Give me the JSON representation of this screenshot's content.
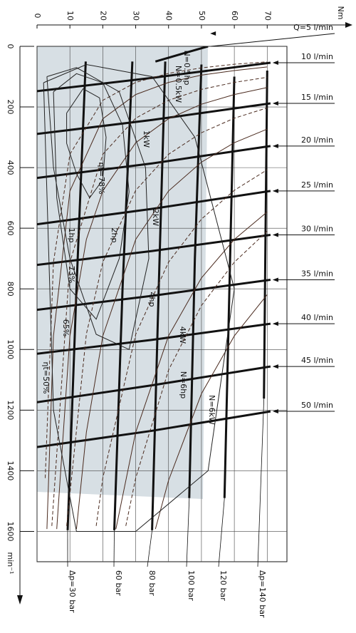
{
  "chart_data": {
    "type": "line",
    "x_label": "Nm",
    "y_label": "min⁻¹",
    "xlim": [
      0,
      76
    ],
    "ylim": [
      0,
      1700
    ],
    "y_inverted": true,
    "grid": true,
    "xticks": [
      0,
      10,
      20,
      30,
      40,
      50,
      60,
      70
    ],
    "yticks": [
      0,
      200,
      400,
      600,
      800,
      1000,
      1200,
      1400,
      1600
    ],
    "series": [
      {
        "name": "Q=5 l/min",
        "color": "#111",
        "style": "bold",
        "x": [
          36,
          44,
          52
        ],
        "values": [
          50,
          25,
          0
        ]
      },
      {
        "name": "10 l/min",
        "color": "#111",
        "style": "bold",
        "x": [
          0,
          35,
          71
        ],
        "values": [
          148,
          104,
          54
        ]
      },
      {
        "name": "15 l/min",
        "color": "#111",
        "style": "bold",
        "x": [
          0,
          35,
          71
        ],
        "values": [
          289,
          243,
          188
        ]
      },
      {
        "name": "20 l/min",
        "color": "#111",
        "style": "bold",
        "x": [
          0,
          35,
          71
        ],
        "values": [
          434,
          386,
          329
        ]
      },
      {
        "name": "25 l/min",
        "color": "#111",
        "style": "bold",
        "x": [
          0,
          35,
          71
        ],
        "values": [
          587,
          536,
          477
        ]
      },
      {
        "name": "30 l/min",
        "color": "#111",
        "style": "bold",
        "x": [
          0,
          35,
          71
        ],
        "values": [
          721,
          675,
          622
        ]
      },
      {
        "name": "35 l/min",
        "color": "#111",
        "style": "bold",
        "x": [
          0,
          35,
          71
        ],
        "values": [
          869,
          823,
          770
        ]
      },
      {
        "name": "40 l/min",
        "color": "#111",
        "style": "bold",
        "x": [
          0,
          35,
          71
        ],
        "values": [
          1014,
          968,
          915
        ]
      },
      {
        "name": "45 l/min",
        "color": "#111",
        "style": "bold",
        "x": [
          0,
          35,
          71
        ],
        "values": [
          1174,
          1118,
          1056
        ]
      },
      {
        "name": "50 l/min",
        "color": "#111",
        "style": "bold",
        "x": [
          0,
          35,
          71
        ],
        "values": [
          1322,
          1268,
          1204
        ]
      },
      {
        "name": "Δp=30 bar",
        "color": "#111",
        "style": "bold",
        "x": [
          14.8,
          12,
          9.3
        ],
        "values": [
          50,
          800,
          1596
        ]
      },
      {
        "name": "60 bar",
        "color": "#111",
        "style": "bold",
        "x": [
          29,
          26,
          23.5
        ],
        "values": [
          50,
          800,
          1596
        ]
      },
      {
        "name": "80 bar",
        "color": "#111",
        "style": "bold",
        "x": [
          39,
          37,
          35
        ],
        "values": [
          50,
          800,
          1596
        ]
      },
      {
        "name": "100 bar",
        "color": "#111",
        "style": "bold",
        "x": [
          50,
          48,
          46.3
        ],
        "values": [
          60,
          700,
          1490
        ]
      },
      {
        "name": "120 bar",
        "color": "#111",
        "style": "bold",
        "x": [
          60,
          58.5,
          57
        ],
        "values": [
          100,
          800,
          1490
        ]
      },
      {
        "name": "Δp=140 bar",
        "color": "#111",
        "style": "bold",
        "x": [
          70,
          69.5,
          69
        ],
        "values": [
          80,
          600,
          1162
        ]
      },
      {
        "name": "N=0.5kW",
        "color": "#4a2a1e",
        "style": "thin",
        "x": [
          3,
          5,
          10,
          20,
          30,
          40,
          50,
          60,
          70
        ],
        "values": [
          1592,
          955,
          477,
          239,
          159,
          119,
          95,
          80,
          68
        ]
      },
      {
        "name": "1kW",
        "color": "#4a2a1e",
        "style": "thin",
        "x": [
          6,
          10,
          15,
          20,
          30,
          40,
          50,
          60,
          70
        ],
        "values": [
          1592,
          955,
          637,
          477,
          318,
          239,
          191,
          159,
          136
        ]
      },
      {
        "name": "2kW",
        "color": "#4a2a1e",
        "style": "thin",
        "x": [
          12,
          15,
          20,
          30,
          40,
          50,
          60,
          70
        ],
        "values": [
          1592,
          1273,
          955,
          637,
          477,
          382,
          318,
          273
        ]
      },
      {
        "name": "4kW",
        "color": "#4a2a1e",
        "style": "thin",
        "x": [
          24,
          30,
          40,
          50,
          60,
          70
        ],
        "values": [
          1592,
          1273,
          955,
          764,
          637,
          546
        ]
      },
      {
        "name": "N=6kW",
        "color": "#4a2a1e",
        "style": "thin",
        "x": [
          36,
          40,
          50,
          60,
          70
        ],
        "values": [
          1592,
          1432,
          1146,
          955,
          819
        ]
      },
      {
        "name": "N=0.5hp",
        "color": "#4a2a1e",
        "style": "dashed",
        "x": [
          2.5,
          5,
          10,
          20,
          30,
          40,
          50,
          60,
          70
        ],
        "values": [
          1424,
          712,
          356,
          178,
          119,
          89,
          71,
          59,
          51
        ]
      },
      {
        "name": "1hp",
        "color": "#4a2a1e",
        "style": "dashed",
        "x": [
          4.5,
          10,
          20,
          30,
          40,
          50,
          60,
          70
        ],
        "values": [
          1582,
          712,
          356,
          237,
          178,
          142,
          119,
          102
        ]
      },
      {
        "name": "2hp",
        "color": "#4a2a1e",
        "style": "dashed",
        "x": [
          9,
          15,
          20,
          30,
          40,
          50,
          60,
          70
        ],
        "values": [
          1582,
          949,
          712,
          475,
          356,
          285,
          237,
          203
        ]
      },
      {
        "name": "4hp",
        "color": "#4a2a1e",
        "style": "dashed",
        "x": [
          18,
          20,
          30,
          40,
          50,
          60,
          70
        ],
        "values": [
          1582,
          1424,
          950,
          712,
          570,
          475,
          407
        ]
      },
      {
        "name": "N=6hp",
        "color": "#4a2a1e",
        "style": "dashed",
        "x": [
          27,
          30,
          40,
          50,
          60,
          70
        ],
        "values": [
          1582,
          1424,
          1068,
          855,
          712,
          610
        ]
      },
      {
        "name": "ηt=78%",
        "color": "#222",
        "style": "thin",
        "x": [
          9,
          14,
          19,
          21,
          20,
          16,
          12,
          9,
          9
        ],
        "values": [
          220,
          140,
          170,
          300,
          440,
          500,
          420,
          320,
          220
        ]
      },
      {
        "name": "73%",
        "color": "#222",
        "style": "thin",
        "x": [
          5,
          12,
          20,
          26,
          28,
          25,
          18,
          10,
          6,
          5
        ],
        "values": [
          150,
          90,
          120,
          260,
          480,
          700,
          900,
          800,
          500,
          150
        ]
      },
      {
        "name": "65%",
        "color": "#222",
        "style": "thin",
        "x": [
          3,
          12,
          25,
          33,
          34,
          28,
          18,
          10,
          5,
          3
        ],
        "values": [
          100,
          70,
          150,
          400,
          700,
          1000,
          950,
          700,
          400,
          100
        ]
      },
      {
        "name": "ηt=50%",
        "color": "#222",
        "style": "thin",
        "x": [
          2,
          15,
          35,
          48,
          60,
          52,
          30,
          12,
          5,
          2
        ],
        "values": [
          120,
          60,
          100,
          300,
          800,
          1400,
          1600,
          1600,
          1200,
          120
        ]
      }
    ]
  }
}
